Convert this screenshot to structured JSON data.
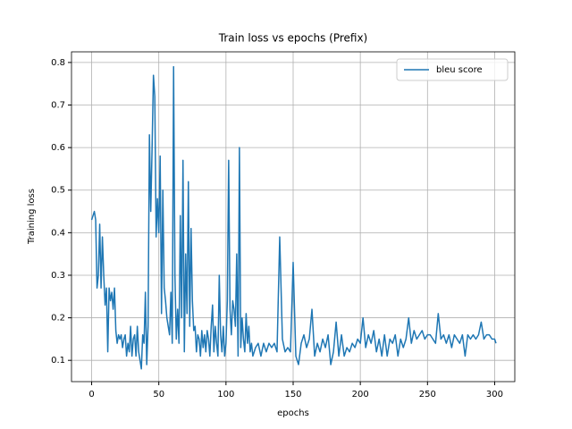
{
  "chart_data": {
    "type": "line",
    "title": "Train loss vs epochs (Prefix)",
    "x_label": "epochs",
    "y_label": "Training loss",
    "x": [
      0,
      1,
      2,
      3,
      4,
      5,
      6,
      7,
      8,
      9,
      10,
      11,
      12,
      13,
      14,
      15,
      16,
      17,
      18,
      19,
      20,
      21,
      22,
      23,
      24,
      25,
      26,
      27,
      28,
      29,
      30,
      31,
      32,
      33,
      34,
      35,
      36,
      37,
      38,
      39,
      40,
      41,
      42,
      43,
      44,
      45,
      46,
      47,
      48,
      49,
      50,
      51,
      52,
      53,
      54,
      55,
      56,
      57,
      58,
      59,
      60,
      61,
      62,
      63,
      64,
      65,
      66,
      67,
      68,
      69,
      70,
      71,
      72,
      73,
      74,
      75,
      76,
      77,
      78,
      79,
      80,
      81,
      82,
      83,
      84,
      85,
      86,
      87,
      88,
      89,
      90,
      91,
      92,
      93,
      94,
      95,
      96,
      97,
      98,
      99,
      100,
      101,
      102,
      103,
      104,
      105,
      106,
      107,
      108,
      109,
      110,
      111,
      112,
      113,
      114,
      115,
      116,
      117,
      118,
      119,
      120,
      122,
      124,
      126,
      128,
      130,
      132,
      134,
      136,
      138,
      140,
      142,
      144,
      146,
      148,
      150,
      152,
      154,
      156,
      158,
      160,
      162,
      164,
      166,
      168,
      170,
      172,
      174,
      176,
      178,
      180,
      182,
      184,
      186,
      188,
      190,
      192,
      194,
      196,
      198,
      200,
      202,
      204,
      206,
      208,
      210,
      212,
      214,
      216,
      218,
      220,
      222,
      224,
      226,
      228,
      230,
      232,
      234,
      236,
      238,
      240,
      242,
      244,
      246,
      248,
      250,
      252,
      254,
      256,
      258,
      260,
      262,
      264,
      266,
      268,
      270,
      272,
      274,
      276,
      278,
      280,
      282,
      284,
      286,
      288,
      290,
      292,
      294,
      296,
      298,
      300,
      301
    ],
    "series": [
      {
        "name": "bleu score",
        "color": "#1f77b4",
        "values": [
          0.43,
          0.44,
          0.45,
          0.43,
          0.27,
          0.3,
          0.42,
          0.27,
          0.39,
          0.3,
          0.23,
          0.27,
          0.12,
          0.27,
          0.24,
          0.26,
          0.22,
          0.27,
          0.17,
          0.14,
          0.16,
          0.15,
          0.16,
          0.13,
          0.15,
          0.16,
          0.11,
          0.14,
          0.12,
          0.18,
          0.11,
          0.15,
          0.16,
          0.11,
          0.18,
          0.12,
          0.1,
          0.08,
          0.16,
          0.14,
          0.26,
          0.09,
          0.18,
          0.63,
          0.45,
          0.6,
          0.77,
          0.72,
          0.39,
          0.48,
          0.4,
          0.58,
          0.21,
          0.5,
          0.27,
          0.24,
          0.2,
          0.18,
          0.16,
          0.26,
          0.14,
          0.79,
          0.3,
          0.15,
          0.22,
          0.14,
          0.44,
          0.2,
          0.57,
          0.12,
          0.35,
          0.21,
          0.52,
          0.18,
          0.41,
          0.24,
          0.17,
          0.18,
          0.12,
          0.16,
          0.15,
          0.11,
          0.17,
          0.13,
          0.16,
          0.12,
          0.17,
          0.15,
          0.11,
          0.18,
          0.23,
          0.12,
          0.18,
          0.14,
          0.11,
          0.3,
          0.16,
          0.12,
          0.18,
          0.11,
          0.14,
          0.24,
          0.57,
          0.22,
          0.16,
          0.24,
          0.22,
          0.18,
          0.35,
          0.11,
          0.6,
          0.13,
          0.2,
          0.15,
          0.12,
          0.21,
          0.14,
          0.18,
          0.12,
          0.14,
          0.11,
          0.13,
          0.14,
          0.11,
          0.14,
          0.12,
          0.14,
          0.13,
          0.14,
          0.12,
          0.39,
          0.15,
          0.12,
          0.13,
          0.12,
          0.33,
          0.11,
          0.09,
          0.14,
          0.16,
          0.13,
          0.15,
          0.22,
          0.11,
          0.14,
          0.12,
          0.15,
          0.13,
          0.16,
          0.09,
          0.12,
          0.19,
          0.11,
          0.16,
          0.11,
          0.13,
          0.12,
          0.14,
          0.13,
          0.15,
          0.14,
          0.2,
          0.13,
          0.16,
          0.14,
          0.17,
          0.12,
          0.15,
          0.11,
          0.16,
          0.11,
          0.15,
          0.14,
          0.16,
          0.11,
          0.15,
          0.13,
          0.15,
          0.2,
          0.14,
          0.17,
          0.15,
          0.16,
          0.17,
          0.15,
          0.16,
          0.16,
          0.15,
          0.14,
          0.21,
          0.15,
          0.16,
          0.14,
          0.16,
          0.13,
          0.16,
          0.15,
          0.14,
          0.16,
          0.11,
          0.16,
          0.15,
          0.16,
          0.15,
          0.16,
          0.19,
          0.15,
          0.16,
          0.16,
          0.15,
          0.15,
          0.14
        ]
      }
    ],
    "xlim": [
      -15,
      315
    ],
    "ylim": [
      0.05,
      0.825
    ],
    "xticks": [
      0,
      50,
      100,
      150,
      200,
      250,
      300
    ],
    "yticks": [
      0.1,
      0.2,
      0.3,
      0.4,
      0.5,
      0.6,
      0.7,
      0.8
    ],
    "grid": true,
    "legend": "upper right"
  }
}
